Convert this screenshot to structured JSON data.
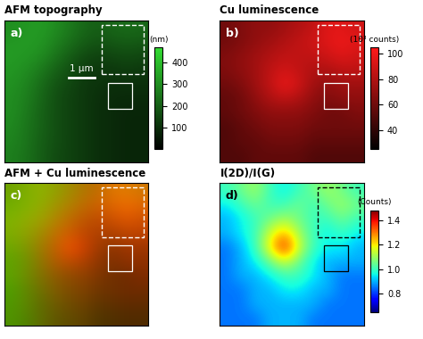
{
  "chart_data": [
    {
      "type": "heatmap",
      "label": "a)",
      "title": "AFM topography",
      "color": "#33dd33",
      "scale_bar": "1 µm",
      "cells": [
        [
          300,
          320,
          330,
          300,
          260,
          220,
          200,
          220,
          230,
          220
        ],
        [
          320,
          330,
          320,
          280,
          240,
          200,
          180,
          190,
          200,
          190
        ],
        [
          330,
          320,
          300,
          250,
          200,
          160,
          140,
          150,
          160,
          150
        ],
        [
          320,
          300,
          260,
          210,
          170,
          130,
          120,
          120,
          130,
          120
        ],
        [
          310,
          280,
          230,
          180,
          150,
          120,
          110,
          100,
          100,
          100
        ],
        [
          300,
          270,
          220,
          170,
          140,
          120,
          100,
          90,
          90,
          90
        ],
        [
          300,
          260,
          210,
          170,
          140,
          120,
          100,
          90,
          80,
          80
        ],
        [
          290,
          250,
          210,
          170,
          140,
          120,
          100,
          90,
          80,
          80
        ],
        [
          280,
          250,
          200,
          170,
          140,
          120,
          100,
          90,
          80,
          80
        ],
        [
          270,
          240,
          200,
          160,
          140,
          120,
          100,
          90,
          80,
          80
        ]
      ],
      "colorbar": {
        "label": "(nm)",
        "range": [
          0,
          470
        ],
        "ticks": [
          100,
          200,
          300,
          400
        ]
      }
    },
    {
      "type": "heatmap",
      "label": "b)",
      "title": "Cu luminescence",
      "color": "#ff1a1a",
      "cells": [
        [
          60,
          65,
          70,
          70,
          75,
          80,
          85,
          95,
          95,
          90
        ],
        [
          60,
          65,
          70,
          75,
          80,
          85,
          90,
          95,
          100,
          95
        ],
        [
          65,
          70,
          75,
          80,
          85,
          85,
          85,
          90,
          95,
          90
        ],
        [
          65,
          70,
          75,
          85,
          90,
          85,
          80,
          80,
          85,
          85
        ],
        [
          60,
          65,
          75,
          85,
          100,
          90,
          75,
          70,
          75,
          75
        ],
        [
          55,
          60,
          70,
          80,
          85,
          80,
          70,
          65,
          70,
          70
        ],
        [
          55,
          60,
          65,
          70,
          70,
          70,
          65,
          60,
          60,
          65
        ],
        [
          50,
          55,
          60,
          65,
          65,
          65,
          60,
          60,
          60,
          60
        ],
        [
          50,
          55,
          55,
          60,
          60,
          60,
          55,
          55,
          55,
          55
        ],
        [
          50,
          50,
          55,
          55,
          55,
          55,
          50,
          50,
          50,
          50
        ]
      ],
      "colorbar": {
        "label": "(10³ counts)",
        "range": [
          25,
          105
        ],
        "ticks": [
          40,
          60,
          80,
          100
        ]
      }
    },
    {
      "type": "overlay",
      "label": "c)",
      "title": "AFM + Cu luminescence",
      "layers": [
        "AFM topography",
        "Cu luminescence"
      ]
    },
    {
      "type": "heatmap",
      "label": "d)",
      "title": "I(2D)/I(G)",
      "color": "jet",
      "cells": [
        [
          1.0,
          1.05,
          1.1,
          1.0,
          0.95,
          1.0,
          1.05,
          1.1,
          1.05,
          1.0
        ],
        [
          0.95,
          1.0,
          1.05,
          1.0,
          1.0,
          1.05,
          1.0,
          1.05,
          1.1,
          1.05
        ],
        [
          0.9,
          0.95,
          1.0,
          1.05,
          1.1,
          1.05,
          1.0,
          1.0,
          1.05,
          1.0
        ],
        [
          0.9,
          0.95,
          1.0,
          1.15,
          1.25,
          1.1,
          1.0,
          0.95,
          1.0,
          0.95
        ],
        [
          0.85,
          0.9,
          1.0,
          1.2,
          1.4,
          1.15,
          1.0,
          0.95,
          0.95,
          0.9
        ],
        [
          0.85,
          0.9,
          0.95,
          1.05,
          1.15,
          1.05,
          0.95,
          0.9,
          0.9,
          0.9
        ],
        [
          0.85,
          0.9,
          0.9,
          0.95,
          1.0,
          1.0,
          0.95,
          0.9,
          0.85,
          0.85
        ],
        [
          0.85,
          0.85,
          0.9,
          0.9,
          0.95,
          0.95,
          0.9,
          0.9,
          0.85,
          0.85
        ],
        [
          0.85,
          0.85,
          0.9,
          0.9,
          0.9,
          0.9,
          0.9,
          0.85,
          0.85,
          0.85
        ],
        [
          0.85,
          0.85,
          0.85,
          0.9,
          0.9,
          0.9,
          0.85,
          0.85,
          0.85,
          0.85
        ]
      ],
      "colorbar": {
        "label": "(Counts)",
        "range": [
          0.65,
          1.48
        ],
        "ticks": [
          0.8,
          {
            "value": 1,
            "label": "1.0"
          },
          1.2,
          1.4
        ]
      }
    }
  ]
}
